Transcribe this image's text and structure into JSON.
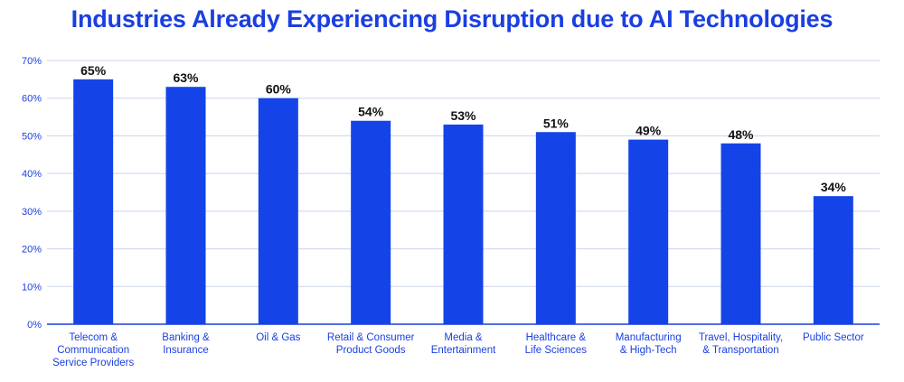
{
  "chart_data": {
    "type": "bar",
    "title": "Industries Already Experiencing Disruption due to AI Technologies",
    "xlabel": "",
    "ylabel": "",
    "ylim": [
      0,
      70
    ],
    "yticks": [
      0,
      10,
      20,
      30,
      40,
      50,
      60,
      70
    ],
    "ytick_labels": [
      "0%",
      "10%",
      "20%",
      "30%",
      "40%",
      "50%",
      "60%",
      "70%"
    ],
    "grid": true,
    "categories": [
      [
        "Telecom &",
        "Communication",
        "Service Providers"
      ],
      [
        "Banking &",
        "Insurance"
      ],
      [
        "Oil & Gas"
      ],
      [
        "Retail & Consumer",
        "Product Goods"
      ],
      [
        "Media &",
        "Entertainment"
      ],
      [
        "Healthcare &",
        "Life Sciences"
      ],
      [
        "Manufacturing",
        "& High-Tech"
      ],
      [
        "Travel, Hospitality,",
        "& Transportation"
      ],
      [
        "Public Sector"
      ]
    ],
    "values": [
      65,
      63,
      60,
      54,
      53,
      51,
      49,
      48,
      34
    ],
    "data_labels": [
      "65%",
      "63%",
      "60%",
      "54%",
      "53%",
      "51%",
      "49%",
      "48%",
      "34%"
    ]
  },
  "colors": {
    "title": "#1a3fe0",
    "bar": "#1444e8",
    "grid": "#c9d3ec",
    "axis_text": "#1a3fe0",
    "axis_line": "#1a3fe0"
  }
}
